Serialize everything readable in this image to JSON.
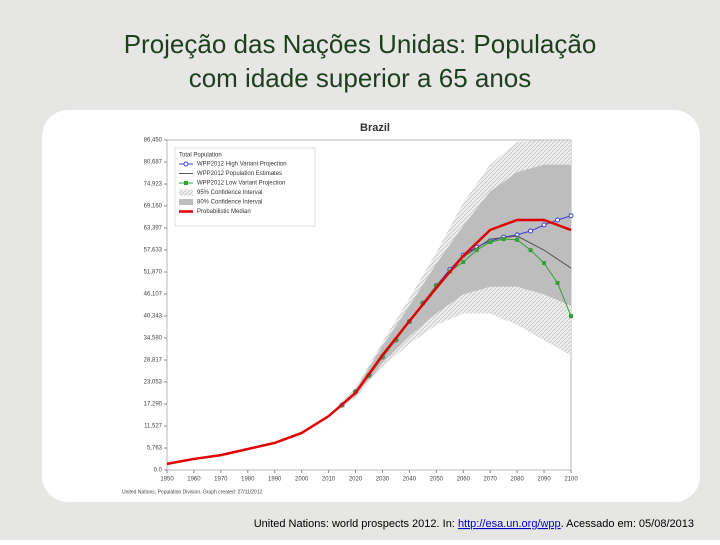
{
  "slide_title": [
    "Projeção das Nações Unidas: População",
    "com idade superior a 65 anos"
  ],
  "footer": {
    "before": "United Nations: world prospects 2012. In: ",
    "link": "http://esa.un.org/wpp",
    "after": ". Acessado em: 05/08/2013"
  },
  "chart_data": {
    "type": "line",
    "title": "Brazil",
    "legend_title": "Total Population",
    "credit": "United Nations, Population Division, Graph created: 27/11/2012",
    "xlim": [
      1950,
      2100
    ],
    "xticks": [
      1950,
      1960,
      1970,
      1980,
      1990,
      2000,
      2010,
      2020,
      2030,
      2040,
      2050,
      2060,
      2070,
      2080,
      2090,
      2100
    ],
    "ylim": [
      0,
      86450
    ],
    "yticks": [
      {
        "value": 0,
        "label": "0.0"
      },
      {
        "value": 5763,
        "label": "5,763"
      },
      {
        "value": 11527,
        "label": "11,527"
      },
      {
        "value": 17290,
        "label": "17,290"
      },
      {
        "value": 23053,
        "label": "23,053"
      },
      {
        "value": 28817,
        "label": "28,817"
      },
      {
        "value": 34580,
        "label": "34,580"
      },
      {
        "value": 40343,
        "label": "40,343"
      },
      {
        "value": 46107,
        "label": "46,107"
      },
      {
        "value": 51870,
        "label": "51,870"
      },
      {
        "value": 57633,
        "label": "57,633"
      },
      {
        "value": 63397,
        "label": "63,397"
      },
      {
        "value": 69160,
        "label": "69,160"
      },
      {
        "value": 74923,
        "label": "74,923"
      },
      {
        "value": 80687,
        "label": "80,687"
      },
      {
        "value": 86450,
        "label": "86,450"
      }
    ],
    "series": [
      {
        "name": "WPP2012 High Variant Projection",
        "color": "#3b3bd0",
        "marker": "circle",
        "x": [
          2015,
          2020,
          2025,
          2030,
          2035,
          2040,
          2045,
          2050,
          2055,
          2060,
          2065,
          2070,
          2075,
          2080,
          2085,
          2090,
          2095,
          2100
        ],
        "values": [
          17000,
          20500,
          24800,
          29600,
          34100,
          38900,
          43700,
          48300,
          52500,
          56300,
          58400,
          60000,
          61000,
          61600,
          62600,
          64200,
          65500,
          66600
        ]
      },
      {
        "name": "WPP2012 Population Estimates",
        "color": "#555555",
        "x": [
          1950,
          1960,
          1970,
          1980,
          1990,
          2000,
          2010,
          2020,
          2030,
          2040,
          2050,
          2060,
          2070,
          2080,
          2090,
          2100
        ],
        "values": [
          1600,
          2900,
          3900,
          5500,
          7100,
          9700,
          14100,
          20200,
          29800,
          38900,
          47700,
          55800,
          60500,
          61300,
          57600,
          52900
        ]
      },
      {
        "name": "WPP2012 Low Variant Projection",
        "color": "#33a033",
        "marker": "square",
        "x": [
          2015,
          2020,
          2025,
          2030,
          2035,
          2040,
          2045,
          2050,
          2055,
          2060,
          2065,
          2070,
          2075,
          2080,
          2085,
          2090,
          2095,
          2100
        ],
        "values": [
          17000,
          20500,
          24800,
          29600,
          34100,
          38900,
          43700,
          48300,
          52000,
          54500,
          57600,
          59700,
          60500,
          60300,
          57600,
          54200,
          49000,
          40300
        ]
      },
      {
        "name": "95% Confidence Interval",
        "color": "#dadada",
        "x": [
          2010,
          2020,
          2030,
          2040,
          2050,
          2060,
          2070,
          2080,
          2090,
          2100
        ],
        "lower": [
          14100,
          19000,
          27000,
          33000,
          38000,
          41000,
          41000,
          38000,
          34000,
          30000
        ],
        "upper": [
          14100,
          21500,
          33500,
          45000,
          57000,
          70000,
          80000,
          86000,
          86400,
          86400
        ]
      },
      {
        "name": "80% Confidence Interval",
        "color": "#bdbdbd",
        "x": [
          2010,
          2020,
          2030,
          2040,
          2050,
          2060,
          2070,
          2080,
          2090,
          2100
        ],
        "lower": [
          14100,
          19500,
          28000,
          35000,
          41000,
          46000,
          48000,
          48000,
          46000,
          43000
        ],
        "upper": [
          14100,
          21000,
          32500,
          43000,
          54000,
          64000,
          73000,
          78000,
          80000,
          80000
        ]
      },
      {
        "name": "Probabilistic Median",
        "color": "#e00000",
        "x": [
          1950,
          1960,
          1970,
          1980,
          1990,
          2000,
          2010,
          2020,
          2030,
          2040,
          2050,
          2060,
          2070,
          2080,
          2090,
          2100
        ],
        "values": [
          1600,
          2900,
          3900,
          5500,
          7100,
          9700,
          14100,
          20200,
          30100,
          39000,
          47700,
          56100,
          62900,
          65500,
          65500,
          62900
        ]
      }
    ]
  }
}
